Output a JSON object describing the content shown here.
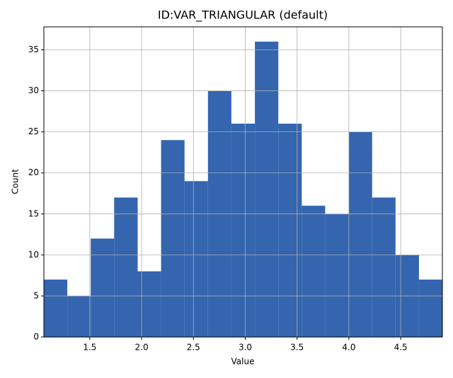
{
  "chart_data": {
    "type": "histogram",
    "title": "ID:VAR_TRIANGULAR (default)",
    "x_label": "Value",
    "y_label": "Count",
    "bins": [
      1.057,
      1.283,
      1.509,
      1.735,
      1.962,
      2.188,
      2.414,
      2.64,
      2.866,
      3.093,
      3.319,
      3.545,
      3.771,
      3.997,
      4.224,
      4.45,
      4.676,
      4.902
    ],
    "values": [
      7,
      5,
      12,
      17,
      8,
      24,
      19,
      30,
      26,
      36,
      26,
      16,
      15,
      25,
      17,
      10,
      7
    ],
    "color": "#3465ae",
    "xlim": [
      1.057,
      4.902
    ],
    "xticks": [
      1.5,
      {
        "value": 2,
        "label": "2.0"
      },
      2.5,
      {
        "value": 3,
        "label": "3.0"
      },
      3.5,
      {
        "value": 4,
        "label": "4.0"
      },
      4.5
    ],
    "ylim": [
      0,
      37.8
    ],
    "yticks": [
      0,
      5,
      10,
      15,
      20,
      25,
      30,
      35
    ],
    "grid": true
  }
}
